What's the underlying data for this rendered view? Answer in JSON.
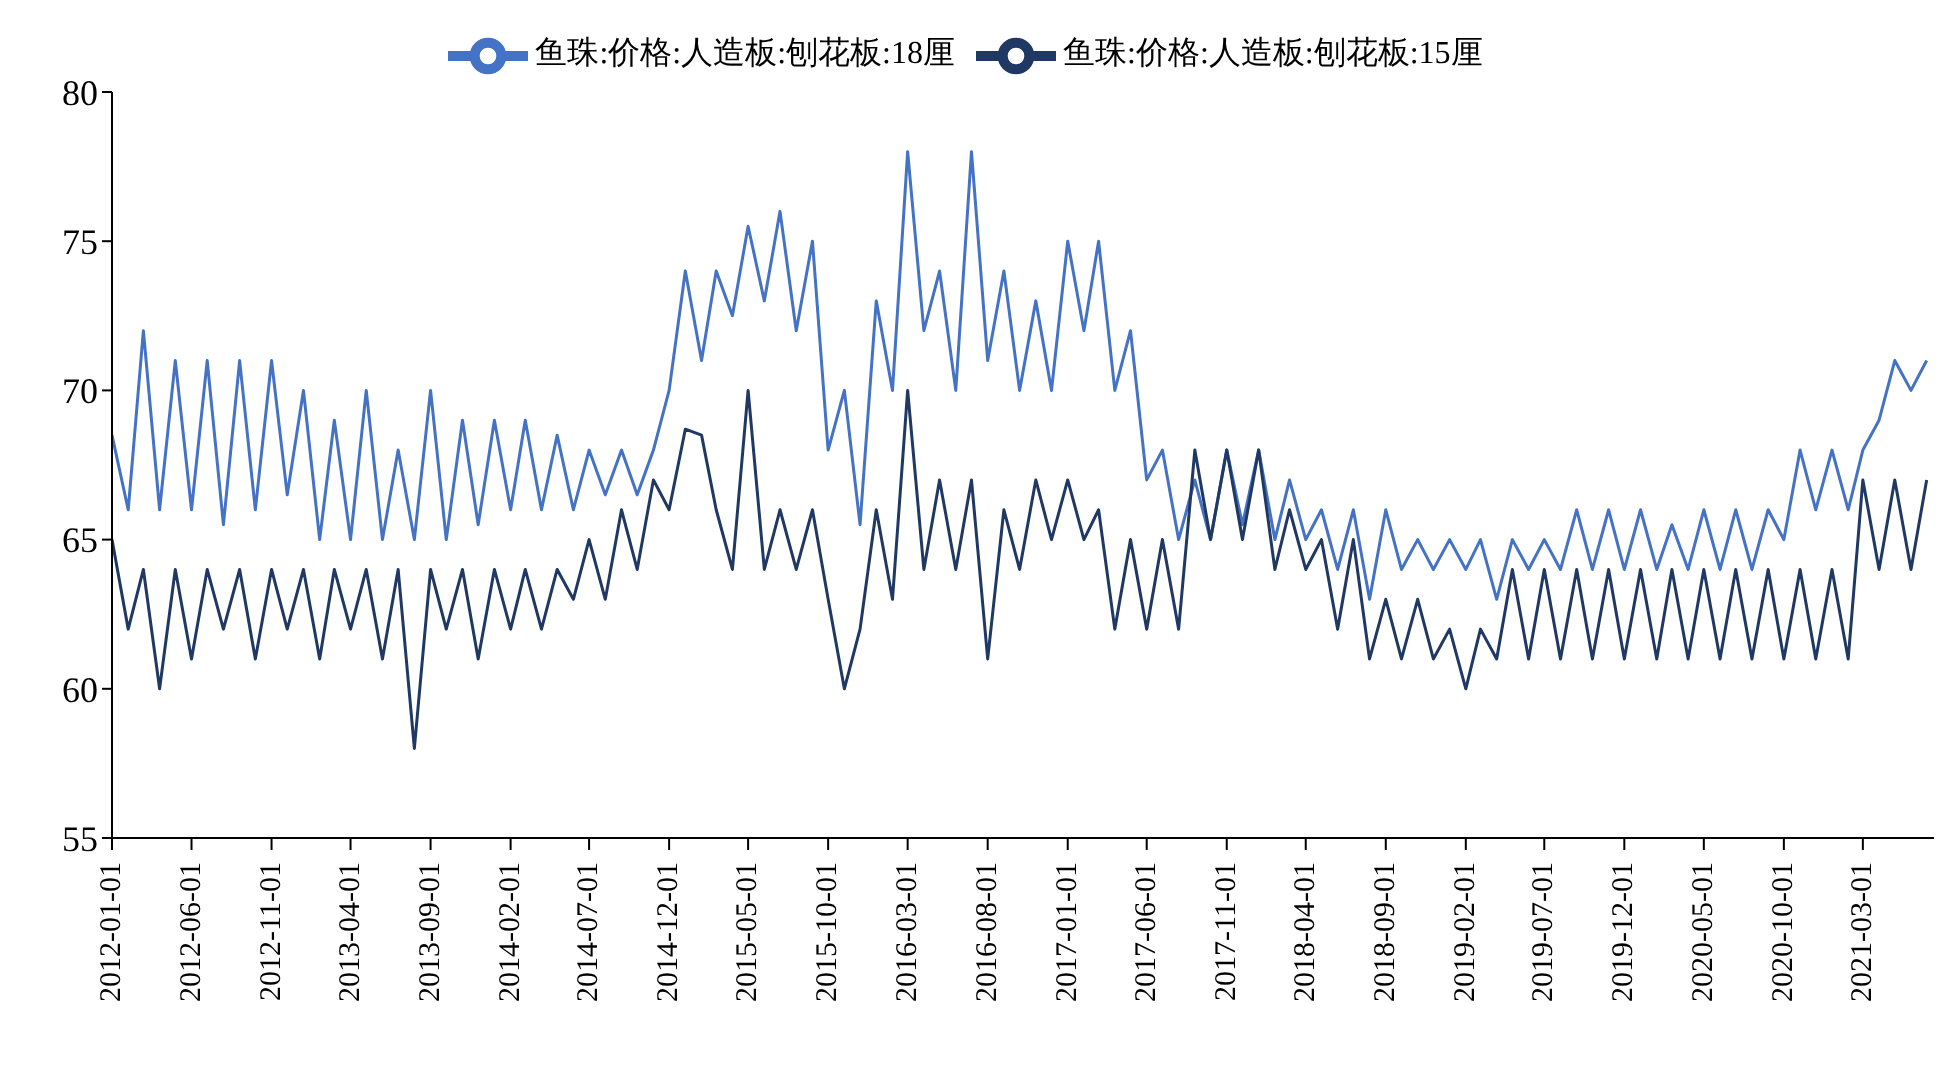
{
  "chart_data": {
    "type": "line",
    "x": [
      "2012-01",
      "2012-02",
      "2012-03",
      "2012-04",
      "2012-05",
      "2012-06",
      "2012-07",
      "2012-08",
      "2012-09",
      "2012-10",
      "2012-11",
      "2012-12",
      "2013-01",
      "2013-02",
      "2013-03",
      "2013-04",
      "2013-05",
      "2013-06",
      "2013-07",
      "2013-08",
      "2013-09",
      "2013-10",
      "2013-11",
      "2013-12",
      "2014-01",
      "2014-02",
      "2014-03",
      "2014-04",
      "2014-05",
      "2014-06",
      "2014-07",
      "2014-08",
      "2014-09",
      "2014-10",
      "2014-11",
      "2014-12",
      "2015-01",
      "2015-02",
      "2015-03",
      "2015-04",
      "2015-05",
      "2015-06",
      "2015-07",
      "2015-08",
      "2015-09",
      "2015-10",
      "2015-11",
      "2015-12",
      "2016-01",
      "2016-02",
      "2016-03",
      "2016-04",
      "2016-05",
      "2016-06",
      "2016-07",
      "2016-08",
      "2016-09",
      "2016-10",
      "2016-11",
      "2016-12",
      "2017-01",
      "2017-02",
      "2017-03",
      "2017-04",
      "2017-05",
      "2017-06",
      "2017-07",
      "2017-08",
      "2017-09",
      "2017-10",
      "2017-11",
      "2017-12",
      "2018-01",
      "2018-02",
      "2018-03",
      "2018-04",
      "2018-05",
      "2018-06",
      "2018-07",
      "2018-08",
      "2018-09",
      "2018-10",
      "2018-11",
      "2018-12",
      "2019-01",
      "2019-02",
      "2019-03",
      "2019-04",
      "2019-05",
      "2019-06",
      "2019-07",
      "2019-08",
      "2019-09",
      "2019-10",
      "2019-11",
      "2019-12",
      "2020-01",
      "2020-02",
      "2020-03",
      "2020-04",
      "2020-05",
      "2020-06",
      "2020-07",
      "2020-08",
      "2020-09",
      "2020-10",
      "2020-11",
      "2020-12",
      "2021-01",
      "2021-02",
      "2021-03",
      "2021-04",
      "2021-05",
      "2021-06",
      "2021-07"
    ],
    "series": [
      {
        "name": "鱼珠:价格:人造板:刨花板:18厘",
        "color": "#4472c4",
        "values": [
          68.5,
          66,
          72,
          66,
          71,
          66,
          71,
          65.5,
          71,
          66,
          71,
          66.5,
          70,
          65,
          69,
          65,
          70,
          65,
          68,
          65,
          70,
          65,
          69,
          65.5,
          69,
          66,
          69,
          66,
          68.5,
          66,
          68,
          66.5,
          68,
          66.5,
          68,
          70,
          74,
          71,
          74,
          72.5,
          75.5,
          73,
          76,
          72,
          75,
          68,
          70,
          65.5,
          73,
          70,
          78,
          72,
          74,
          70,
          78,
          71,
          74,
          70,
          73,
          70,
          75,
          72,
          75,
          70,
          72,
          67,
          68,
          65,
          67,
          65,
          68,
          65.5,
          68,
          65,
          67,
          65,
          66,
          64,
          66,
          63,
          66,
          64,
          65,
          64,
          65,
          64,
          65,
          63,
          65,
          64,
          65,
          64,
          66,
          64,
          66,
          64,
          66,
          64,
          65.5,
          64,
          66,
          64,
          66,
          64,
          66,
          65,
          68,
          66,
          68,
          66,
          68,
          69,
          71,
          70,
          71
        ]
      },
      {
        "name": "鱼珠:价格:人造板:刨花板:15厘",
        "color": "#1f3864",
        "values": [
          65,
          62,
          64,
          60,
          64,
          61,
          64,
          62,
          64,
          61,
          64,
          62,
          64,
          61,
          64,
          62,
          64,
          61,
          64,
          58,
          64,
          62,
          64,
          61,
          64,
          62,
          64,
          62,
          64,
          63,
          65,
          63,
          66,
          64,
          67,
          66,
          68.7,
          68.5,
          66,
          64,
          70,
          64,
          66,
          64,
          66,
          63,
          60,
          62,
          66,
          63,
          70,
          64,
          67,
          64,
          67,
          61,
          66,
          64,
          67,
          65,
          67,
          65,
          66,
          62,
          65,
          62,
          65,
          62,
          68,
          65,
          68,
          65,
          68,
          64,
          66,
          64,
          65,
          62,
          65,
          61,
          63,
          61,
          63,
          61,
          62,
          60,
          62,
          61,
          64,
          61,
          64,
          61,
          64,
          61,
          64,
          61,
          64,
          61,
          64,
          61,
          64,
          61,
          64,
          61,
          64,
          61,
          64,
          61,
          64,
          61,
          67,
          64,
          67,
          64,
          67
        ]
      }
    ],
    "xlim": [
      "2012-01-01",
      "2021-07-15"
    ],
    "xticks": [
      "2012-01-01",
      "2012-06-01",
      "2012-11-01",
      "2013-04-01",
      "2013-09-01",
      "2014-02-01",
      "2014-07-01",
      "2014-12-01",
      "2015-05-01",
      "2015-10-01",
      "2016-03-01",
      "2016-08-01",
      "2017-01-01",
      "2017-06-01",
      "2017-11-01",
      "2018-04-01",
      "2018-09-01",
      "2019-02-01",
      "2019-07-01",
      "2019-12-01",
      "2020-05-01",
      "2020-10-01",
      "2021-03-01"
    ],
    "ylim": [
      55,
      80
    ],
    "yticks": [
      55,
      60,
      65,
      70,
      75,
      80
    ],
    "legend": "top",
    "grid": false,
    "marker": "none",
    "line_style": "solid"
  }
}
